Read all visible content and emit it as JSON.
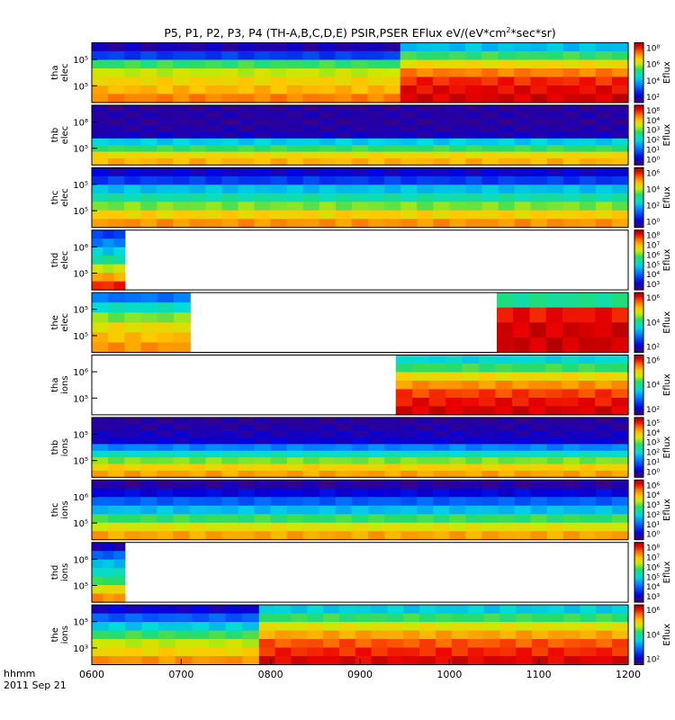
{
  "chart_data": {
    "type": "heatmap",
    "title_text": "P5, P1, P2, P3, P4 (TH-A,B,C,D,E) PSIR,PSER EFlux eV/(eV*cm",
    "title_sup": "2",
    "title_end": "*sec*sr)",
    "x_axis": {
      "ticks": [
        "0600",
        "0700",
        "0800",
        "0900",
        "1000",
        "1100",
        "1200"
      ],
      "label": "hhmm",
      "date": "2011 Sep 21",
      "range": [
        600,
        1200
      ]
    },
    "colorbar_label": "Eflux",
    "panels": [
      {
        "probe": "tha",
        "species": "elec",
        "yticks": [
          "10⁵",
          "10⁵"
        ],
        "cbticks": [
          "10⁸",
          "10⁶",
          "10⁴",
          "10²"
        ],
        "segments": [
          {
            "from": 600,
            "to": 945,
            "profile": [
              0.07,
              0.2,
              0.55,
              0.65,
              0.72,
              0.76,
              0.82
            ]
          },
          {
            "from": 945,
            "to": 1200,
            "profile": [
              0.38,
              0.55,
              0.7,
              0.82,
              0.9,
              0.93,
              0.95
            ]
          }
        ]
      },
      {
        "probe": "thb",
        "species": "elec",
        "yticks": [
          "10⁸",
          "10⁵"
        ],
        "cbticks": [
          "10⁸",
          "10⁴",
          "10³",
          "10²",
          "10¹",
          "10⁰"
        ],
        "segments": [
          {
            "from": 600,
            "to": 1200,
            "profile": [
              0.05,
              0.06,
              0.05,
              0.06,
              0.08,
              0.4,
              0.55,
              0.7,
              0.76
            ]
          }
        ]
      },
      {
        "probe": "thc",
        "species": "elec",
        "yticks": [
          "10⁵",
          "10⁵"
        ],
        "cbticks": [
          "10⁶",
          "10⁴",
          "10²",
          "10⁰"
        ],
        "segments": [
          {
            "from": 600,
            "to": 1200,
            "profile": [
              0.1,
              0.2,
              0.38,
              0.48,
              0.6,
              0.72,
              0.8
            ]
          }
        ]
      },
      {
        "probe": "thd",
        "species": "elec",
        "yticks": [
          "10⁶",
          "10⁵"
        ],
        "cbticks": [
          "10⁸",
          "10⁷",
          "10⁶",
          "10⁵",
          "10⁴",
          "10³"
        ],
        "segments": [
          {
            "from": 600,
            "to": 637,
            "profile": [
              0.2,
              0.3,
              0.4,
              0.5,
              0.65,
              0.78,
              0.9
            ]
          }
        ]
      },
      {
        "probe": "the",
        "species": "elec",
        "yticks": [
          "10⁵",
          "10⁵"
        ],
        "cbticks": [
          "10⁶",
          "10⁴",
          "10²"
        ],
        "segments": [
          {
            "from": 600,
            "to": 710,
            "profile": [
              0.28,
              0.45,
              0.6,
              0.7,
              0.75,
              0.8
            ]
          },
          {
            "from": 1053,
            "to": 1200,
            "profile": [
              0.5,
              0.92,
              0.95,
              0.96
            ]
          }
        ]
      },
      {
        "probe": "tha",
        "species": "ions",
        "yticks": [
          "10⁶",
          "10⁵"
        ],
        "cbticks": [
          "10⁶",
          "10⁴",
          "10²"
        ],
        "segments": [
          {
            "from": 940,
            "to": 1200,
            "profile": [
              0.42,
              0.55,
              0.7,
              0.8,
              0.88,
              0.92,
              0.95
            ]
          }
        ]
      },
      {
        "probe": "thb",
        "species": "ions",
        "yticks": [
          "10⁵",
          "10⁵"
        ],
        "cbticks": [
          "10⁵",
          "10⁴",
          "10³",
          "10²",
          "10¹",
          "10⁰"
        ],
        "segments": [
          {
            "from": 600,
            "to": 1200,
            "profile": [
              0.05,
              0.06,
              0.08,
              0.1,
              0.3,
              0.45,
              0.6,
              0.72,
              0.78
            ]
          }
        ]
      },
      {
        "probe": "thc",
        "species": "ions",
        "yticks": [
          "10⁶",
          "10⁵"
        ],
        "cbticks": [
          "10⁶",
          "10⁴",
          "10³",
          "10²",
          "10¹",
          "10⁰"
        ],
        "segments": [
          {
            "from": 600,
            "to": 1200,
            "profile": [
              0.05,
              0.12,
              0.25,
              0.38,
              0.55,
              0.68,
              0.78
            ]
          }
        ]
      },
      {
        "probe": "thd",
        "species": "ions",
        "yticks": [
          "10⁶",
          "10⁵"
        ],
        "cbticks": [
          "10⁸",
          "10⁷",
          "10⁶",
          "10⁵",
          "10⁴",
          "10³"
        ],
        "segments": [
          {
            "from": 600,
            "to": 637,
            "profile": [
              0.08,
              0.25,
              0.38,
              0.45,
              0.55,
              0.7,
              0.8
            ]
          }
        ]
      },
      {
        "probe": "the",
        "species": "ions",
        "yticks": [
          "10⁵",
          "10³"
        ],
        "cbticks": [
          "10⁶",
          "10⁴",
          "10²"
        ],
        "segments": [
          {
            "from": 600,
            "to": 787,
            "profile": [
              0.1,
              0.25,
              0.4,
              0.55,
              0.65,
              0.72,
              0.8
            ]
          },
          {
            "from": 787,
            "to": 1200,
            "profile": [
              0.4,
              0.55,
              0.68,
              0.78,
              0.86,
              0.9,
              0.94
            ]
          }
        ]
      }
    ]
  }
}
